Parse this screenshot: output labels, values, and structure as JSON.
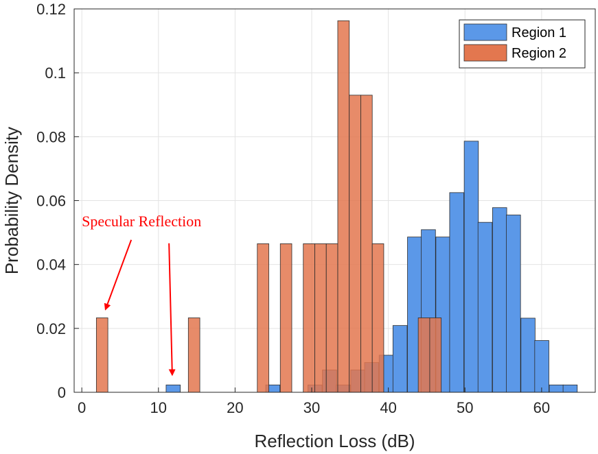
{
  "chart_data": {
    "type": "histogram",
    "title": "",
    "xlabel": "Reflection Loss (dB)",
    "ylabel": "Probability Density",
    "xlim": [
      -1,
      67
    ],
    "ylim": [
      0,
      0.12
    ],
    "xticks": [
      0,
      10,
      20,
      30,
      40,
      50,
      60
    ],
    "yticks": [
      0,
      0.02,
      0.04,
      0.06,
      0.08,
      0.1,
      0.12
    ],
    "ytick_labels": [
      "0",
      "0.02",
      "0.04",
      "0.06",
      "0.08",
      "0.1",
      "0.12"
    ],
    "grid": true,
    "legend_position": "top-right",
    "series": [
      {
        "name": "Region 1",
        "color": "#5b98e8",
        "bin_width": 1.85,
        "bins": [
          {
            "x0": 11.0,
            "value": 0.0023
          },
          {
            "x0": 24.0,
            "value": 0.0023
          },
          {
            "x0": 29.5,
            "value": 0.0023
          },
          {
            "x0": 31.4,
            "value": 0.007
          },
          {
            "x0": 33.2,
            "value": 0.0023
          },
          {
            "x0": 35.1,
            "value": 0.007
          },
          {
            "x0": 36.9,
            "value": 0.0093
          },
          {
            "x0": 38.8,
            "value": 0.0116
          },
          {
            "x0": 40.6,
            "value": 0.0209
          },
          {
            "x0": 42.5,
            "value": 0.0486
          },
          {
            "x0": 44.3,
            "value": 0.0509
          },
          {
            "x0": 46.2,
            "value": 0.0486
          },
          {
            "x0": 48.0,
            "value": 0.0625
          },
          {
            "x0": 49.9,
            "value": 0.0786
          },
          {
            "x0": 51.7,
            "value": 0.0532
          },
          {
            "x0": 53.6,
            "value": 0.0578
          },
          {
            "x0": 55.4,
            "value": 0.0555
          },
          {
            "x0": 57.3,
            "value": 0.0232
          },
          {
            "x0": 59.1,
            "value": 0.0162
          },
          {
            "x0": 61.0,
            "value": 0.0023
          },
          {
            "x0": 62.8,
            "value": 0.0023
          }
        ]
      },
      {
        "name": "Region 2",
        "color": "#e3774f",
        "bin_width": 1.5,
        "bins": [
          {
            "x0": 1.9,
            "value": 0.0233
          },
          {
            "x0": 13.9,
            "value": 0.0233
          },
          {
            "x0": 22.9,
            "value": 0.0465
          },
          {
            "x0": 25.9,
            "value": 0.0465
          },
          {
            "x0": 28.9,
            "value": 0.0465
          },
          {
            "x0": 30.4,
            "value": 0.0465
          },
          {
            "x0": 31.9,
            "value": 0.0465
          },
          {
            "x0": 33.4,
            "value": 0.1163
          },
          {
            "x0": 34.9,
            "value": 0.093
          },
          {
            "x0": 36.4,
            "value": 0.093
          },
          {
            "x0": 37.9,
            "value": 0.0465
          },
          {
            "x0": 43.9,
            "value": 0.0233
          },
          {
            "x0": 45.4,
            "value": 0.0233
          }
        ]
      }
    ],
    "annotations": [
      {
        "text": "Specular Reflection",
        "color": "#ff0000",
        "text_at": [
          0,
          0.052
        ],
        "arrows_to": [
          [
            3.1,
            0.026
          ],
          [
            11.8,
            0.0055
          ]
        ]
      }
    ]
  }
}
